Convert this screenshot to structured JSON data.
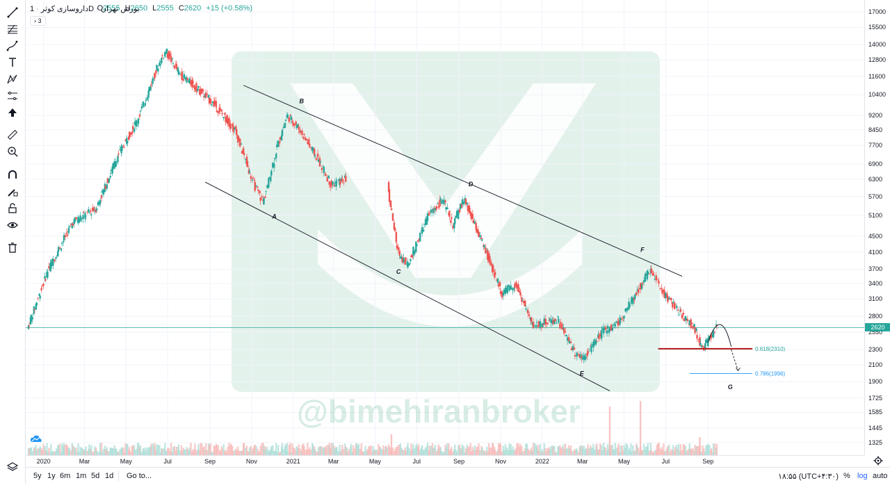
{
  "header": {
    "symbol": "داروسازی کوثر",
    "interval": "1D",
    "exchange": "بورس تهران",
    "open_label": "O",
    "open": "2555",
    "high_label": "H",
    "high": "2650",
    "low_label": "L",
    "low": "2555",
    "close_label": "C",
    "close": "2620",
    "change": "+15 (+0.58%)",
    "indicator_badge": "3"
  },
  "watermark": {
    "text": "@bimehiranbroker"
  },
  "chart_data": {
    "type": "candlestick",
    "y_scale": "log",
    "ylim": [
      1250,
      17500
    ],
    "y_ticks": [
      17000,
      15500,
      14000,
      12800,
      11600,
      10400,
      9200,
      8450,
      7700,
      6900,
      6300,
      5700,
      5100,
      4500,
      4100,
      3700,
      3400,
      3100,
      2800,
      2550,
      2300,
      2100,
      1900,
      1725,
      1585,
      1445,
      1325
    ],
    "x_ticks": [
      "2020",
      "Mar",
      "May",
      "Jul",
      "Sep",
      "Nov",
      "2021",
      "Mar",
      "May",
      "Jul",
      "Sep",
      "Nov",
      "2022",
      "Mar",
      "May",
      "Jul",
      "Sep"
    ],
    "last_price": 2620,
    "price_path": [
      {
        "x": "2019-12-10",
        "y": 2600
      },
      {
        "x": "2020-01-10",
        "y": 3700
      },
      {
        "x": "2020-02-15",
        "y": 4900
      },
      {
        "x": "2020-03-20",
        "y": 5300
      },
      {
        "x": "2020-04-20",
        "y": 7200
      },
      {
        "x": "2020-05-20",
        "y": 9000
      },
      {
        "x": "2020-06-20",
        "y": 12500
      },
      {
        "x": "2020-06-30",
        "y": 13500
      },
      {
        "x": "2020-07-20",
        "y": 11800
      },
      {
        "x": "2020-08-15",
        "y": 10800
      },
      {
        "x": "2020-09-10",
        "y": 9800
      },
      {
        "x": "2020-10-10",
        "y": 8400
      },
      {
        "x": "2020-11-05",
        "y": 6200
      },
      {
        "x": "2020-11-20",
        "y": 5500
      },
      {
        "x": "2020-12-10",
        "y": 7600
      },
      {
        "x": "2020-12-25",
        "y": 9200
      },
      {
        "x": "2021-01-10",
        "y": 8600
      },
      {
        "x": "2021-02-10",
        "y": 7000
      },
      {
        "x": "2021-02-28",
        "y": 6100
      },
      {
        "x": "2021-03-20",
        "y": 6300
      },
      {
        "x": "2021-05-20",
        "y": 6300
      },
      {
        "x": "2021-06-05",
        "y": 4100
      },
      {
        "x": "2021-06-20",
        "y": 3800
      },
      {
        "x": "2021-07-20",
        "y": 5100
      },
      {
        "x": "2021-08-10",
        "y": 5600
      },
      {
        "x": "2021-08-25",
        "y": 4800
      },
      {
        "x": "2021-09-10",
        "y": 5600
      },
      {
        "x": "2021-10-10",
        "y": 4200
      },
      {
        "x": "2021-11-05",
        "y": 3200
      },
      {
        "x": "2021-11-25",
        "y": 3400
      },
      {
        "x": "2021-12-20",
        "y": 2650
      },
      {
        "x": "2022-01-25",
        "y": 2750
      },
      {
        "x": "2022-02-20",
        "y": 2250
      },
      {
        "x": "2022-03-05",
        "y": 2200
      },
      {
        "x": "2022-04-01",
        "y": 2550
      },
      {
        "x": "2022-04-25",
        "y": 2700
      },
      {
        "x": "2022-05-20",
        "y": 3200
      },
      {
        "x": "2022-06-10",
        "y": 3700
      },
      {
        "x": "2022-06-25",
        "y": 3300
      },
      {
        "x": "2022-07-20",
        "y": 2900
      },
      {
        "x": "2022-08-15",
        "y": 2600
      },
      {
        "x": "2022-08-25",
        "y": 2300
      },
      {
        "x": "2022-09-05",
        "y": 2450
      },
      {
        "x": "2022-09-15",
        "y": 2620
      }
    ],
    "wave_labels": [
      "A",
      "B",
      "C",
      "D",
      "E",
      "F",
      "G"
    ],
    "fib_levels": [
      {
        "label": "0.618(2310)",
        "ratio": 0.618,
        "value": 2310,
        "color": "#26a69a"
      },
      {
        "label": "0.786(1996)",
        "ratio": 0.786,
        "value": 1996,
        "color": "#2196f3"
      }
    ],
    "colors": {
      "up": "#26a69a",
      "down": "#ef5350",
      "line": "#131722"
    }
  },
  "time_axis": {
    "labels": [
      "2020",
      "Mar",
      "May",
      "Jul",
      "Sep",
      "Nov",
      "2021",
      "Mar",
      "May",
      "Jul",
      "Sep",
      "Nov",
      "2022",
      "Mar",
      "May",
      "Jul",
      "Sep"
    ]
  },
  "bottom_bar": {
    "ranges": [
      "5y",
      "1y",
      "6m",
      "1m",
      "5d",
      "1d"
    ],
    "goto": "Go to...",
    "clock": "۱۸:۵۵ (UTC+۴:۳۰)",
    "percent": "%",
    "log": "log",
    "auto": "auto"
  },
  "toolbar": {
    "icons": [
      "trend-line-icon",
      "fib-retracement-icon",
      "brush-icon",
      "text-icon",
      "pattern-icon",
      "forecast-icon",
      "arrow-up-icon",
      "ruler-icon",
      "zoom-in-icon",
      "magnet-icon",
      "lock-drawing-icon",
      "unlock-icon",
      "eye-icon",
      "trash-icon",
      "layers-icon"
    ]
  }
}
